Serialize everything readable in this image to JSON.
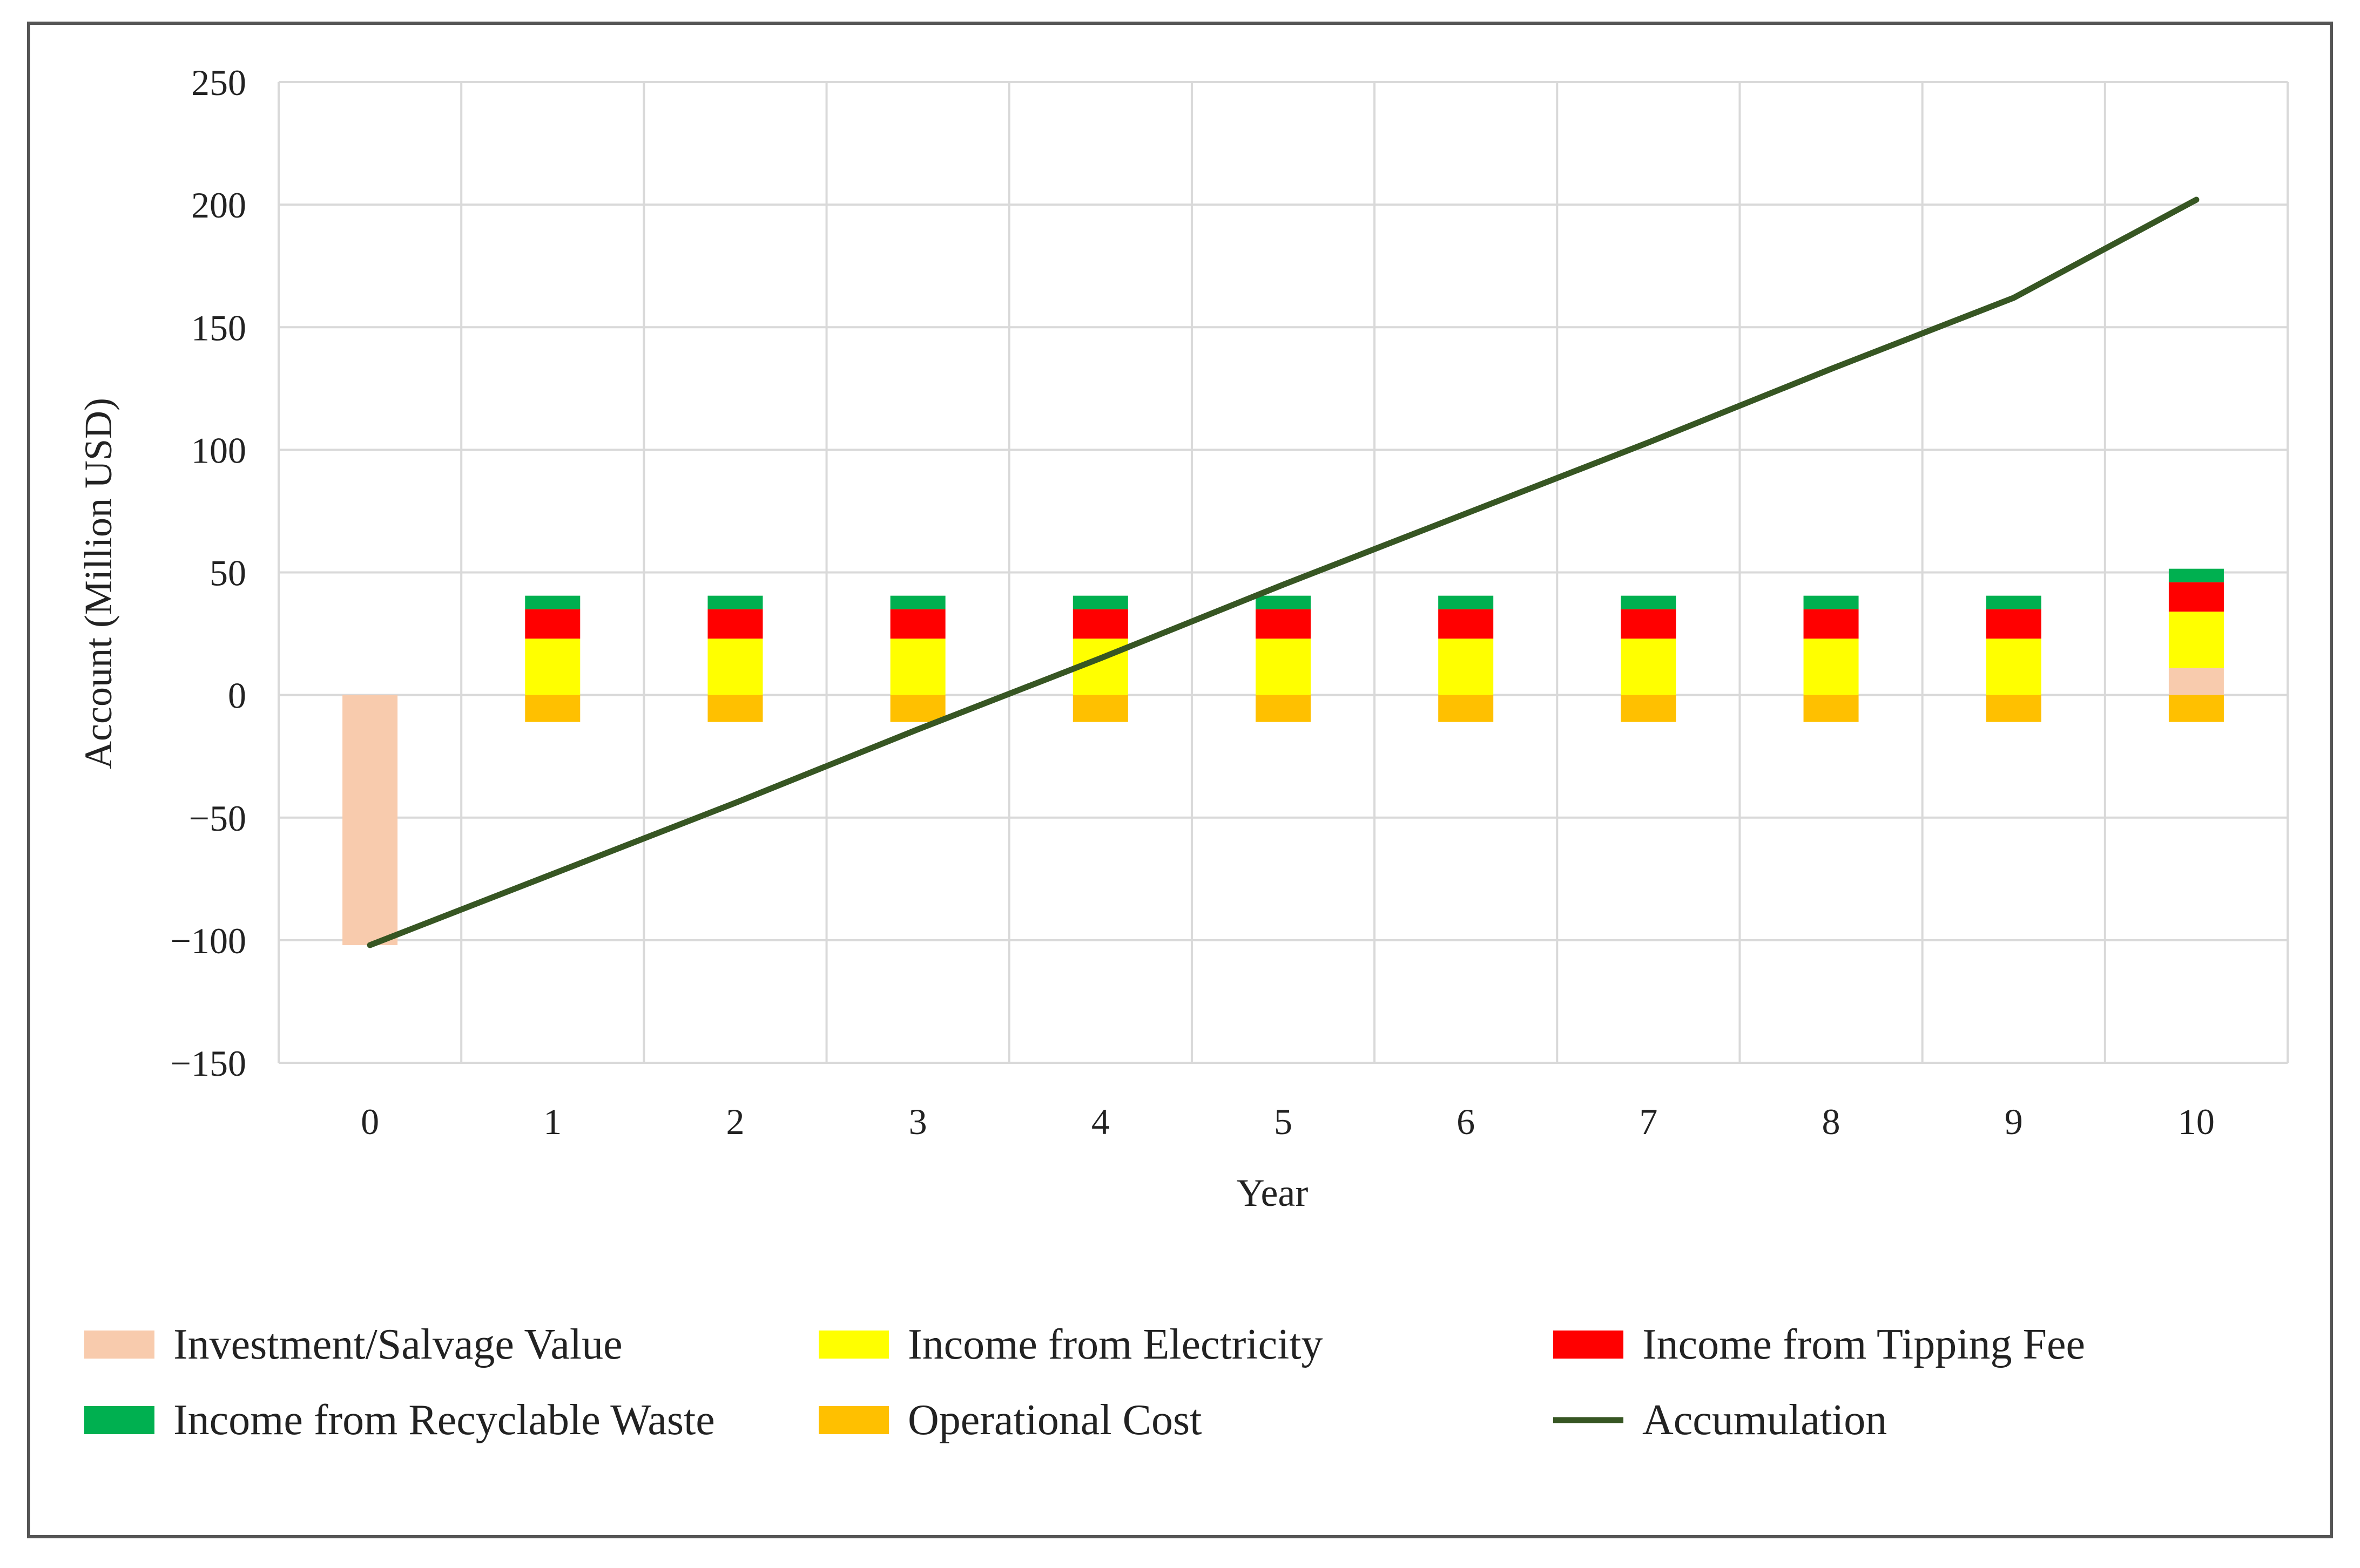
{
  "chart_data": {
    "type": "bar",
    "subtype": "stacked bar with line",
    "title": "",
    "xlabel": "Year",
    "ylabel": "Account (Million USD)",
    "ylim": [
      -150,
      250
    ],
    "yticks": [
      250,
      200,
      150,
      100,
      50,
      0,
      -50,
      -100,
      -150
    ],
    "yticks_labels": [
      "250",
      "200",
      "150",
      "100",
      "50",
      "0",
      "−50",
      "−100",
      "−150"
    ],
    "grid": true,
    "legend_position": "bottom",
    "categories": [
      "0",
      "1",
      "2",
      "3",
      "4",
      "5",
      "6",
      "7",
      "8",
      "9",
      "10"
    ],
    "series": [
      {
        "name": "Investment/Salvage Value",
        "kind": "bar",
        "color": "#f8cbad",
        "values": [
          -102,
          0,
          0,
          0,
          0,
          0,
          0,
          0,
          0,
          0,
          11
        ]
      },
      {
        "name": "Income from Electricity",
        "kind": "bar",
        "color": "#ffff00",
        "values": [
          0,
          23,
          23,
          23,
          23,
          23,
          23,
          23,
          23,
          23,
          23
        ]
      },
      {
        "name": "Income from Tipping Fee",
        "kind": "bar",
        "color": "#ff0000",
        "values": [
          0,
          12,
          12,
          12,
          12,
          12,
          12,
          12,
          12,
          12,
          12
        ]
      },
      {
        "name": "Income from Recyclable Waste",
        "kind": "bar",
        "color": "#00b050",
        "values": [
          0,
          5.5,
          5.5,
          5.5,
          5.5,
          5.5,
          5.5,
          5.5,
          5.5,
          5.5,
          5.5
        ]
      },
      {
        "name": "Operational Cost",
        "kind": "bar",
        "color": "#ffc000",
        "values": [
          0,
          -11,
          -11,
          -11,
          -11,
          -11,
          -11,
          -11,
          -11,
          -11,
          -11
        ]
      },
      {
        "name": "Accumulation",
        "kind": "line",
        "color": "#375623",
        "values": [
          -102,
          -73,
          -44,
          -14,
          15,
          45,
          74,
          103,
          133,
          162,
          202
        ]
      }
    ]
  }
}
